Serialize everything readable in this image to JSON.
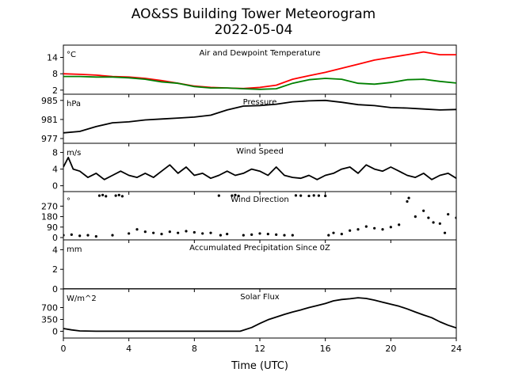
{
  "figure": {
    "title_line1": "AO&SS Building Tower Meteorogram",
    "title_line2": "2022-05-04",
    "xlabel": "Time (UTC)"
  },
  "chart_data": [
    {
      "id": "temperature",
      "type": "line",
      "title": "Air and Dewpoint Temperature",
      "unit_label": "°C",
      "xlim": [
        0,
        24
      ],
      "ylim": [
        0.5,
        18.5
      ],
      "yticks": [
        2,
        8,
        14
      ],
      "colors": {
        "air": "#ff0000",
        "dewpoint": "#008000"
      },
      "series": [
        {
          "name": "Air Temperature",
          "color": "#ff0000",
          "x": [
            0,
            1,
            2,
            3,
            4,
            5,
            6,
            7,
            8,
            9,
            10,
            11,
            12,
            13,
            14,
            15,
            16,
            17,
            18,
            19,
            20,
            21,
            22,
            23,
            24
          ],
          "y": [
            8,
            7.8,
            7.5,
            7,
            6.8,
            6.3,
            5.5,
            4.5,
            3.5,
            3,
            2.8,
            2.6,
            3,
            3.8,
            6,
            7.3,
            8.5,
            10,
            11.5,
            13,
            14,
            15,
            16,
            15,
            15
          ]
        },
        {
          "name": "Dewpoint Temperature",
          "color": "#008000",
          "x": [
            0,
            1,
            2,
            3,
            4,
            5,
            6,
            7,
            8,
            9,
            10,
            11,
            12,
            13,
            14,
            15,
            16,
            17,
            18,
            19,
            20,
            21,
            22,
            23,
            24
          ],
          "y": [
            7,
            7,
            6.8,
            6.8,
            6.5,
            6,
            5,
            4.5,
            3.3,
            2.8,
            2.8,
            2.5,
            2.3,
            2.5,
            4.5,
            5.8,
            6.3,
            6,
            4.5,
            4.2,
            4.8,
            5.8,
            6,
            5.2,
            4.6
          ]
        }
      ]
    },
    {
      "id": "pressure",
      "type": "line",
      "title": "Pressure",
      "unit_label": "hPa",
      "xlim": [
        0,
        24
      ],
      "ylim": [
        976,
        986.3
      ],
      "yticks": [
        977,
        981,
        985
      ],
      "series": [
        {
          "name": "Pressure",
          "color": "#000000",
          "x": [
            0,
            1,
            2,
            3,
            4,
            5,
            6,
            7,
            8,
            9,
            10,
            11,
            12,
            13,
            14,
            15,
            16,
            17,
            18,
            19,
            20,
            21,
            22,
            23,
            24
          ],
          "y": [
            978.2,
            978.5,
            979.5,
            980.3,
            980.5,
            980.9,
            981.1,
            981.3,
            981.5,
            981.9,
            983,
            983.8,
            983.9,
            984.2,
            984.7,
            984.9,
            985,
            984.6,
            984.1,
            983.9,
            983.5,
            983.4,
            983.2,
            983,
            983.1
          ]
        }
      ]
    },
    {
      "id": "wind_speed",
      "type": "line",
      "title": "Wind Speed",
      "unit_label": "m/s",
      "xlim": [
        0,
        24
      ],
      "ylim": [
        -1.4,
        10.2
      ],
      "yticks": [
        0,
        4,
        8
      ],
      "series": [
        {
          "name": "Wind Speed",
          "color": "#000000",
          "x": [
            0,
            0.3,
            0.6,
            1,
            1.5,
            2,
            2.5,
            3,
            3.5,
            4,
            4.5,
            5,
            5.5,
            6,
            6.5,
            7,
            7.5,
            8,
            8.5,
            9,
            9.5,
            10,
            10.5,
            11,
            11.5,
            12,
            12.5,
            13,
            13.5,
            14,
            14.5,
            15,
            15.5,
            16,
            16.5,
            17,
            17.5,
            18,
            18.5,
            19,
            19.5,
            20,
            20.5,
            21,
            21.5,
            22,
            22.5,
            23,
            23.5,
            24
          ],
          "y": [
            4.5,
            6.8,
            4,
            3.5,
            2,
            3,
            1.5,
            2.5,
            3.5,
            2.5,
            2,
            3,
            2,
            3.5,
            5,
            3,
            4.5,
            2.5,
            3,
            1.8,
            2.5,
            3.5,
            2.5,
            3,
            4,
            3.5,
            2.5,
            4.5,
            2.5,
            2,
            1.8,
            2.5,
            1.5,
            2.5,
            3,
            4,
            4.5,
            3,
            5,
            4,
            3.5,
            4.5,
            3.5,
            2.5,
            2,
            3,
            1.5,
            2.5,
            3,
            1.8
          ]
        }
      ]
    },
    {
      "id": "wind_direction",
      "type": "scatter",
      "title": "Wind Direction",
      "unit_label": "°",
      "xlim": [
        0,
        24
      ],
      "ylim": [
        -20,
        395
      ],
      "yticks": [
        0,
        90,
        180,
        270
      ],
      "series": [
        {
          "name": "Wind Direction",
          "color": "#000000",
          "x": [
            0,
            0.5,
            1,
            1.5,
            2,
            2.2,
            2.4,
            2.6,
            3,
            3.2,
            3.4,
            3.6,
            4,
            4.5,
            5,
            5.5,
            6,
            6.5,
            7,
            7.5,
            8,
            8.5,
            9,
            9.5,
            9.6,
            10,
            10.3,
            10.5,
            10.7,
            11,
            11.5,
            12,
            12.5,
            13,
            13.5,
            14,
            14.2,
            14.5,
            15,
            15.3,
            15.6,
            16,
            16.2,
            16.5,
            17,
            17.5,
            18,
            18.5,
            19,
            19.5,
            20,
            20.5,
            21,
            21.1,
            21.5,
            22,
            22.3,
            22.6,
            23,
            23.3,
            23.5,
            24
          ],
          "y": [
            20,
            25,
            15,
            20,
            10,
            360,
            365,
            355,
            20,
            360,
            365,
            355,
            35,
            70,
            50,
            40,
            30,
            50,
            40,
            55,
            45,
            35,
            40,
            360,
            20,
            30,
            360,
            365,
            358,
            20,
            25,
            35,
            30,
            25,
            20,
            20,
            362,
            360,
            358,
            362,
            360,
            358,
            20,
            40,
            30,
            60,
            70,
            95,
            80,
            70,
            90,
            110,
            310,
            340,
            180,
            230,
            170,
            130,
            120,
            40,
            200,
            170
          ]
        }
      ]
    },
    {
      "id": "precipitation",
      "type": "line",
      "title": "Accumulated Precipitation Since 0Z",
      "unit_label": "mm",
      "xlim": [
        0,
        24
      ],
      "ylim": [
        0,
        5
      ],
      "yticks": [
        0,
        2,
        4
      ],
      "series": [
        {
          "name": "Accumulated Precipitation",
          "color": "#000000",
          "x": [
            0,
            24
          ],
          "y": [
            0,
            0
          ]
        }
      ]
    },
    {
      "id": "solar_flux",
      "type": "line",
      "title": "Solar Flux",
      "unit_label": "W/m^2",
      "xlim": [
        0,
        24
      ],
      "ylim": [
        -200,
        1250
      ],
      "yticks": [
        0,
        350,
        700
      ],
      "series": [
        {
          "name": "Solar Flux",
          "color": "#000000",
          "x": [
            0,
            0.5,
            1,
            2,
            4,
            6,
            8,
            10,
            10.8,
            11.5,
            12,
            12.5,
            13,
            13.5,
            14,
            14.5,
            15,
            15.5,
            16,
            16.5,
            17,
            17.5,
            18,
            18.5,
            19,
            19.5,
            20,
            20.5,
            21,
            21.5,
            22,
            22.5,
            23,
            23.5,
            24
          ],
          "y": [
            80,
            40,
            10,
            0,
            0,
            0,
            0,
            0,
            0,
            110,
            230,
            340,
            420,
            500,
            570,
            630,
            700,
            760,
            820,
            900,
            940,
            960,
            990,
            970,
            920,
            860,
            800,
            740,
            660,
            570,
            480,
            400,
            280,
            180,
            100
          ]
        }
      ]
    }
  ]
}
